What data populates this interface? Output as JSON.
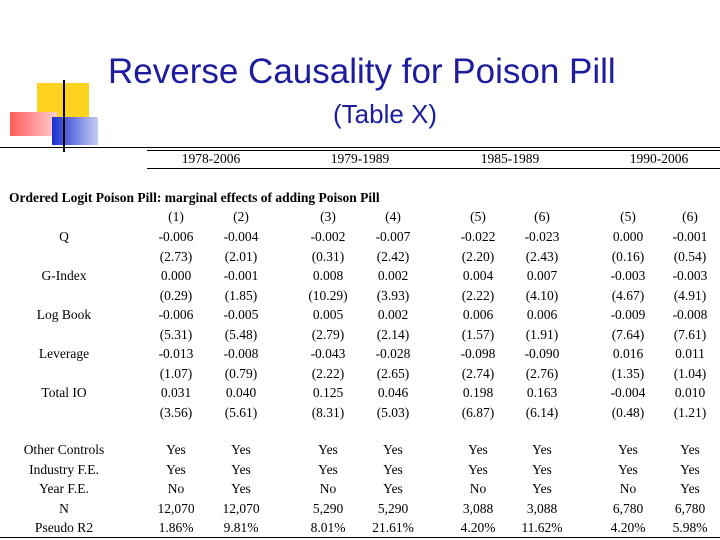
{
  "title": "Reverse Causality for Poison Pill",
  "subtitle": "(Table X)",
  "periods": [
    "1978-2006",
    "1979-1989",
    "1985-1989",
    "1990-2006"
  ],
  "section_title": "Ordered Logit Poison Pill: marginal effects of adding Poison Pill",
  "columns": [
    "(1)",
    "(2)",
    "(3)",
    "(4)",
    "(5)",
    "(6)",
    "(5)",
    "(6)"
  ],
  "rows": [
    {
      "label": "Q",
      "coef": [
        "-0.006",
        "-0.004",
        "-0.002",
        "-0.007",
        "-0.022",
        "-0.023",
        "0.000",
        "-0.001"
      ],
      "t": [
        "(2.73)",
        "(2.01)",
        "(0.31)",
        "(2.42)",
        "(2.20)",
        "(2.43)",
        "(0.16)",
        "(0.54)"
      ]
    },
    {
      "label": "G-Index",
      "coef": [
        "0.000",
        "-0.001",
        "0.008",
        "0.002",
        "0.004",
        "0.007",
        "-0.003",
        "-0.003"
      ],
      "t": [
        "(0.29)",
        "(1.85)",
        "(10.29)",
        "(3.93)",
        "(2.22)",
        "(4.10)",
        "(4.67)",
        "(4.91)"
      ]
    },
    {
      "label": "Log Book",
      "coef": [
        "-0.006",
        "-0.005",
        "0.005",
        "0.002",
        "0.006",
        "0.006",
        "-0.009",
        "-0.008"
      ],
      "t": [
        "(5.31)",
        "(5.48)",
        "(2.79)",
        "(2.14)",
        "(1.57)",
        "(1.91)",
        "(7.64)",
        "(7.61)"
      ]
    },
    {
      "label": "Leverage",
      "coef": [
        "-0.013",
        "-0.008",
        "-0.043",
        "-0.028",
        "-0.098",
        "-0.090",
        "0.016",
        "0.011"
      ],
      "t": [
        "(1.07)",
        "(0.79)",
        "(2.22)",
        "(2.65)",
        "(2.74)",
        "(2.76)",
        "(1.35)",
        "(1.04)"
      ]
    },
    {
      "label": "Total IO",
      "coef": [
        "0.031",
        "0.040",
        "0.125",
        "0.046",
        "0.198",
        "0.163",
        "-0.004",
        "0.010"
      ],
      "t": [
        "(3.56)",
        "(5.61)",
        "(8.31)",
        "(5.03)",
        "(6.87)",
        "(6.14)",
        "(0.48)",
        "(1.21)"
      ]
    }
  ],
  "footer_rows": [
    {
      "label": "Other Controls",
      "values": [
        "Yes",
        "Yes",
        "Yes",
        "Yes",
        "Yes",
        "Yes",
        "Yes",
        "Yes"
      ]
    },
    {
      "label": "Industry F.E.",
      "values": [
        "Yes",
        "Yes",
        "Yes",
        "Yes",
        "Yes",
        "Yes",
        "Yes",
        "Yes"
      ]
    },
    {
      "label": "Year F.E.",
      "values": [
        "No",
        "Yes",
        "No",
        "Yes",
        "No",
        "Yes",
        "No",
        "Yes"
      ]
    },
    {
      "label": "N",
      "values": [
        "12,070",
        "12,070",
        "5,290",
        "5,290",
        "3,088",
        "3,088",
        "6,780",
        "6,780"
      ]
    },
    {
      "label": "Pseudo R2",
      "values": [
        "1.86%",
        "9.81%",
        "8.01%",
        "21.61%",
        "4.20%",
        "11.62%",
        "4.20%",
        "5.98%"
      ]
    }
  ]
}
